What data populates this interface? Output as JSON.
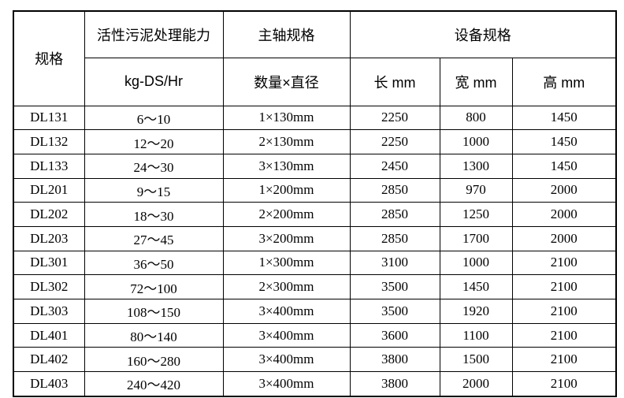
{
  "table": {
    "header": {
      "spec": "规格",
      "capacity_title": "活性污泥处理能力",
      "capacity_unit": "kg-DS/Hr",
      "shaft_title": "主轴规格",
      "shaft_unit": "数量×直径",
      "equipment_title": "设备规格",
      "length_label": "长 mm",
      "width_label": "宽 mm",
      "height_label": "高 mm"
    },
    "rows": [
      {
        "model": "DL131",
        "capacity": "6～10",
        "shaft": "1×130mm",
        "length": "2250",
        "width": "800",
        "height": "1450"
      },
      {
        "model": "DL132",
        "capacity": "12～20",
        "shaft": "2×130mm",
        "length": "2250",
        "width": "1000",
        "height": "1450"
      },
      {
        "model": "DL133",
        "capacity": "24～30",
        "shaft": "3×130mm",
        "length": "2450",
        "width": "1300",
        "height": "1450"
      },
      {
        "model": "DL201",
        "capacity": "9～15",
        "shaft": "1×200mm",
        "length": "2850",
        "width": "970",
        "height": "2000"
      },
      {
        "model": "DL202",
        "capacity": "18～30",
        "shaft": "2×200mm",
        "length": "2850",
        "width": "1250",
        "height": "2000"
      },
      {
        "model": "DL203",
        "capacity": "27～45",
        "shaft": "3×200mm",
        "length": "2850",
        "width": "1700",
        "height": "2000"
      },
      {
        "model": "DL301",
        "capacity": "36～50",
        "shaft": "1×300mm",
        "length": "3100",
        "width": "1000",
        "height": "2100"
      },
      {
        "model": "DL302",
        "capacity": "72～100",
        "shaft": "2×300mm",
        "length": "3500",
        "width": "1450",
        "height": "2100"
      },
      {
        "model": "DL303",
        "capacity": "108～150",
        "shaft": "3×400mm",
        "length": "3500",
        "width": "1920",
        "height": "2100"
      },
      {
        "model": "DL401",
        "capacity": "80～140",
        "shaft": "3×400mm",
        "length": "3600",
        "width": "1100",
        "height": "2100"
      },
      {
        "model": "DL402",
        "capacity": "160～280",
        "shaft": "3×400mm",
        "length": "3800",
        "width": "1500",
        "height": "2100"
      },
      {
        "model": "DL403",
        "capacity": "240～420",
        "shaft": "3×400mm",
        "length": "3800",
        "width": "2000",
        "height": "2100"
      }
    ]
  }
}
